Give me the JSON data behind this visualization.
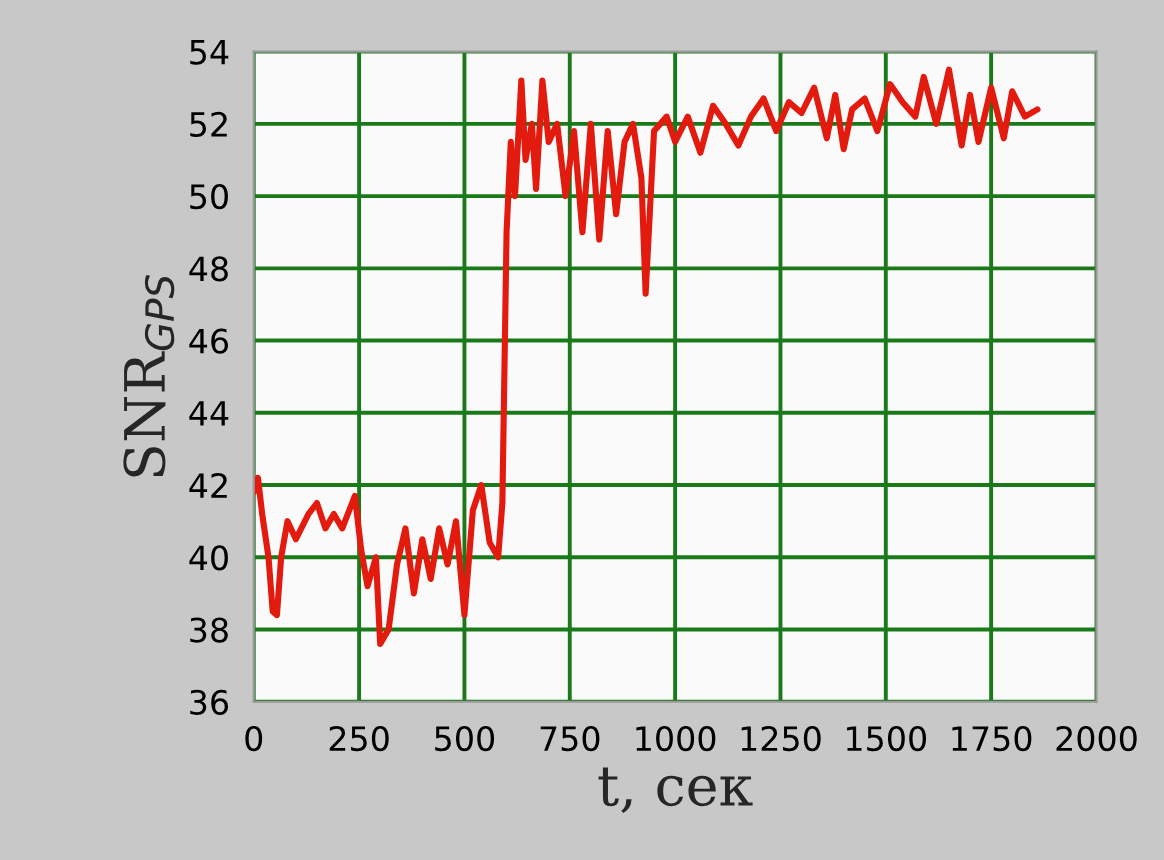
{
  "chart_data": {
    "type": "line",
    "xlabel": "t, сек",
    "ylabel": "SNR$_{GPS}$",
    "xlim": [
      0,
      2000
    ],
    "xticks": [
      0,
      250,
      500,
      750,
      1000,
      1250,
      1500,
      1750,
      2000
    ],
    "ylim": [
      36,
      54
    ],
    "yticks": [
      36,
      38,
      40,
      42,
      44,
      46,
      48,
      50,
      52,
      54
    ],
    "grid": true,
    "series": [
      {
        "color": "#e31a0e",
        "x": [
          0,
          10,
          20,
          35,
          45,
          55,
          65,
          80,
          100,
          130,
          150,
          170,
          190,
          210,
          240,
          255,
          270,
          290,
          300,
          320,
          340,
          360,
          380,
          400,
          420,
          440,
          460,
          480,
          500,
          520,
          540,
          560,
          580,
          590,
          600,
          610,
          620,
          635,
          645,
          660,
          670,
          685,
          700,
          720,
          740,
          760,
          780,
          800,
          820,
          840,
          860,
          880,
          900,
          920,
          930,
          950,
          980,
          1000,
          1030,
          1060,
          1090,
          1120,
          1150,
          1180,
          1210,
          1240,
          1270,
          1300,
          1330,
          1360,
          1380,
          1400,
          1420,
          1450,
          1480,
          1510,
          1540,
          1570,
          1590,
          1620,
          1650,
          1680,
          1700,
          1720,
          1750,
          1780,
          1800,
          1830,
          1860
        ],
        "values": [
          41.8,
          42.2,
          41.2,
          40.0,
          38.5,
          38.4,
          40.0,
          41.0,
          40.5,
          41.2,
          41.5,
          40.8,
          41.2,
          40.8,
          41.7,
          40.2,
          39.2,
          40.0,
          37.6,
          38.0,
          39.8,
          40.8,
          39.0,
          40.5,
          39.4,
          40.8,
          39.8,
          41.0,
          38.4,
          41.3,
          42.0,
          40.4,
          40.0,
          41.5,
          49.0,
          51.5,
          50.0,
          53.2,
          51.0,
          52.0,
          50.2,
          53.2,
          51.5,
          52.0,
          50.0,
          51.8,
          49.0,
          52.0,
          48.8,
          51.8,
          49.5,
          51.5,
          52.0,
          50.5,
          47.3,
          51.8,
          52.2,
          51.5,
          52.2,
          51.2,
          52.5,
          52.0,
          51.4,
          52.2,
          52.7,
          51.8,
          52.6,
          52.3,
          53.0,
          51.6,
          52.8,
          51.3,
          52.4,
          52.7,
          51.8,
          53.1,
          52.6,
          52.2,
          53.3,
          52.0,
          53.5,
          51.4,
          52.8,
          51.5,
          53.0,
          51.6,
          52.9,
          52.2,
          52.4
        ]
      }
    ]
  }
}
